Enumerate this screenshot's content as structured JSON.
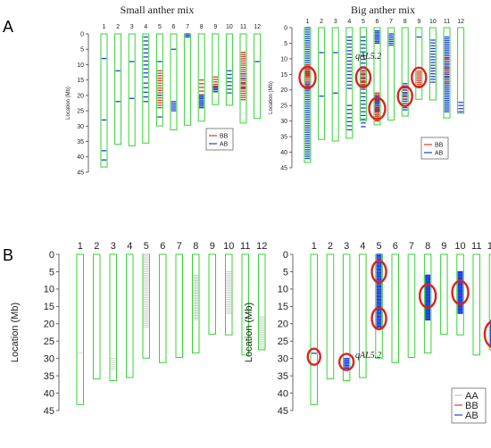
{
  "panel_A": {
    "label": "A",
    "left_title": "Small anther mix",
    "right_title": "Big anther mix",
    "ylabel": "Location (Mb)",
    "y_ticks": [
      "0",
      "5",
      "10",
      "15",
      "20",
      "25",
      "30",
      "35",
      "40",
      "45"
    ],
    "chromosomes": [
      "1",
      "2",
      "3",
      "4",
      "5",
      "6",
      "7",
      "8",
      "9",
      "10",
      "11",
      "12"
    ],
    "legend": [
      "BB",
      "AB"
    ],
    "annotation": "qAL5.2"
  },
  "panel_B": {
    "label": "B",
    "ylabel": "Location (Mb)",
    "y_ticks": [
      "0",
      "5",
      "10",
      "15",
      "20",
      "25",
      "30",
      "35",
      "40",
      "45"
    ],
    "chromosomes": [
      "1",
      "2",
      "3",
      "4",
      "5",
      "6",
      "7",
      "8",
      "9",
      "10",
      "11",
      "12"
    ],
    "legend": [
      "AA",
      "BB",
      "AB"
    ],
    "annotation": "qAL5.2"
  },
  "colors": {
    "chromosome_outline": "#33d633",
    "BB": "#e8352b",
    "AB": "#1f3fe0",
    "AA": "#c8c8c8",
    "highlight_circle": "#e0201f"
  },
  "chart_data": [
    {
      "type": "diagram",
      "title": "Small anther mix",
      "ylabel": "Location (Mb)",
      "ylim": [
        0,
        45
      ],
      "chromosome_lengths_mb": [
        43.3,
        35.9,
        36.4,
        35.5,
        29.9,
        31.2,
        29.7,
        28.4,
        23.0,
        23.2,
        29.0,
        27.5
      ],
      "legend": [
        "BB",
        "AB"
      ]
    },
    {
      "type": "diagram",
      "title": "Big anther mix",
      "ylabel": "Location (Mb)",
      "ylim": [
        0,
        45
      ],
      "chromosome_lengths_mb": [
        43.3,
        35.9,
        36.4,
        35.5,
        29.9,
        31.2,
        29.7,
        28.4,
        23.0,
        23.2,
        29.0,
        27.5
      ],
      "legend": [
        "BB",
        "AB"
      ],
      "annotation": "qAL5.2"
    },
    {
      "type": "diagram",
      "ylabel": "Location (Mb)",
      "ylim": [
        0,
        45
      ],
      "chromosome_lengths_mb": [
        43.3,
        35.9,
        36.4,
        35.5,
        29.9,
        31.2,
        29.7,
        28.4,
        23.0,
        23.2,
        29.0,
        27.5
      ],
      "legend": [
        "AA",
        "BB",
        "AB"
      ]
    },
    {
      "type": "diagram",
      "ylabel": "Location (Mb)",
      "ylim": [
        0,
        45
      ],
      "chromosome_lengths_mb": [
        43.3,
        35.9,
        36.4,
        35.5,
        29.9,
        31.2,
        29.7,
        28.4,
        23.0,
        23.2,
        29.0,
        27.5
      ],
      "legend": [
        "AA",
        "BB",
        "AB"
      ],
      "annotation": "qAL5.2"
    }
  ]
}
